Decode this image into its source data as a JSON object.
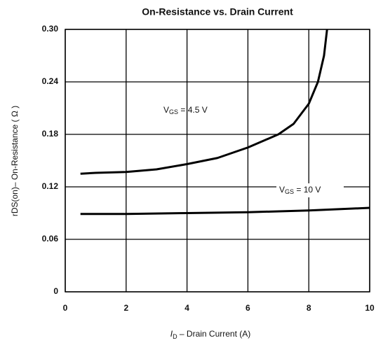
{
  "chart_data": {
    "type": "line",
    "title": "On-Resistance vs. Drain Current",
    "ylabel": "rDS(on)– On-Resistance ( Ω )",
    "xlabel": {
      "base": "I",
      "sub": "D",
      "text": " – Drain Current (A)"
    },
    "xlim": [
      0,
      10
    ],
    "xticks": [
      0,
      2,
      4,
      6,
      8,
      10
    ],
    "ylim": [
      0,
      0.3
    ],
    "yticks": [
      0,
      0.06,
      0.12,
      0.18,
      0.24,
      {
        "value": 0.3,
        "label": "0.30"
      }
    ],
    "grid": true,
    "series": [
      {
        "name": "VGS = 4.5 V",
        "color": "#000000",
        "x": [
          0.5,
          1,
          2,
          3,
          4,
          5,
          6,
          7,
          7.5,
          8,
          8.3,
          8.5,
          8.6
        ],
        "values": [
          0.135,
          0.136,
          0.137,
          0.14,
          0.146,
          0.153,
          0.165,
          0.18,
          0.192,
          0.215,
          0.24,
          0.27,
          0.3
        ]
      },
      {
        "name": "VGS = 10 V",
        "color": "#000000",
        "x": [
          0.5,
          2,
          4,
          6,
          8,
          10
        ],
        "values": [
          0.089,
          0.089,
          0.09,
          0.091,
          0.093,
          0.096
        ]
      }
    ],
    "annotations": [
      {
        "base": "V",
        "sub": "GS",
        "text": " = 4.5 V"
      },
      {
        "base": "V",
        "sub": "GS",
        "text": " = 10 V"
      }
    ]
  }
}
